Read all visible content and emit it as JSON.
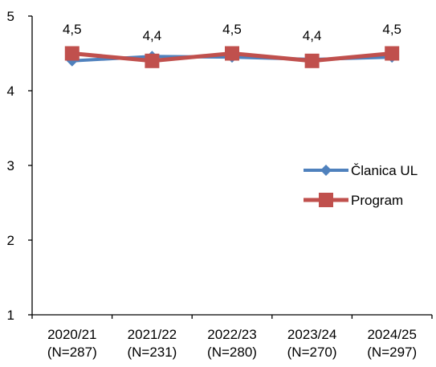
{
  "chart_data": {
    "type": "line",
    "categories": [
      [
        "2020/21",
        "(N=287)"
      ],
      [
        "2021/22",
        "(N=231)"
      ],
      [
        "2022/23",
        "(N=280)"
      ],
      [
        "2023/24",
        "(N=270)"
      ],
      [
        "2024/25",
        "(N=297)"
      ]
    ],
    "series": [
      {
        "name": "Članica UL",
        "values": [
          4.4,
          4.46,
          4.45,
          4.42,
          4.45
        ],
        "color": "#4F81BD",
        "marker": "diamond"
      },
      {
        "name": "Program",
        "values": [
          4.5,
          4.4,
          4.5,
          4.4,
          4.5
        ],
        "color": "#C0504D",
        "marker": "square"
      }
    ],
    "data_labels": [
      "4,5",
      "4,4",
      "4,5",
      "4,4",
      "4,5"
    ],
    "ylim": [
      1,
      5
    ],
    "yticks": [
      "1",
      "2",
      "3",
      "4",
      "5"
    ],
    "grid": false,
    "legend_position": "right",
    "title": "",
    "xlabel": "",
    "ylabel": ""
  }
}
